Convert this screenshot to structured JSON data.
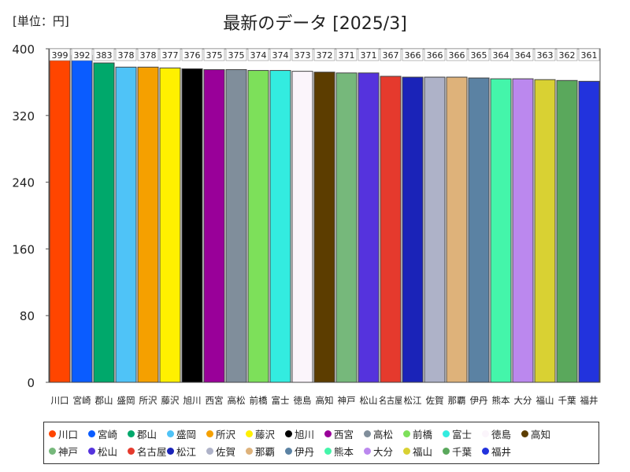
{
  "unit_label": "[単位：円]",
  "chart_data": {
    "type": "bar",
    "title": "最新のデータ [2025/3]",
    "xlabel": "",
    "ylabel": "",
    "ylim": [
      0,
      400
    ],
    "yticks": [
      0,
      80,
      160,
      240,
      320,
      400
    ],
    "grid": false,
    "legend_position": "bottom",
    "categories": [
      "川口",
      "宮崎",
      "郡山",
      "盛岡",
      "所沢",
      "藤沢",
      "旭川",
      "西宮",
      "高松",
      "前橋",
      "富士",
      "徳島",
      "高知",
      "神戸",
      "松山",
      "名古屋",
      "松江",
      "佐賀",
      "那覇",
      "伊丹",
      "熊本",
      "大分",
      "福山",
      "千葉",
      "福井"
    ],
    "axis_labels": [
      "川口",
      "宮崎",
      "郡山",
      "盛岡",
      "所沢",
      "藤沢",
      "旭川",
      "西宮",
      "高松",
      "前橋",
      "富士",
      "徳島",
      "高知",
      "神戸",
      "松山",
      "名古屋",
      "松江",
      "佐賀",
      "那覇",
      "伊丹",
      "熊本",
      "大分",
      "福山",
      "千葉",
      "福井"
    ],
    "values": [
      399,
      392,
      383,
      378,
      378,
      377,
      376,
      375,
      375,
      374,
      374,
      373,
      372,
      371,
      371,
      367,
      366,
      366,
      366,
      365,
      364,
      364,
      363,
      362,
      361
    ],
    "colors": [
      "#ff4500",
      "#0a5cff",
      "#00a86b",
      "#4fc3f7",
      "#f5a000",
      "#fff000",
      "#000000",
      "#990099",
      "#808e9b",
      "#7de05a",
      "#33ece0",
      "#fbf5fb",
      "#5c3d00",
      "#76b87b",
      "#5533dd",
      "#e53a2d",
      "#1a23b8",
      "#aeb2c8",
      "#deb27a",
      "#5b82a3",
      "#44f5aa",
      "#bb88ee",
      "#d9d133",
      "#5aa85c",
      "#2233dd"
    ]
  }
}
